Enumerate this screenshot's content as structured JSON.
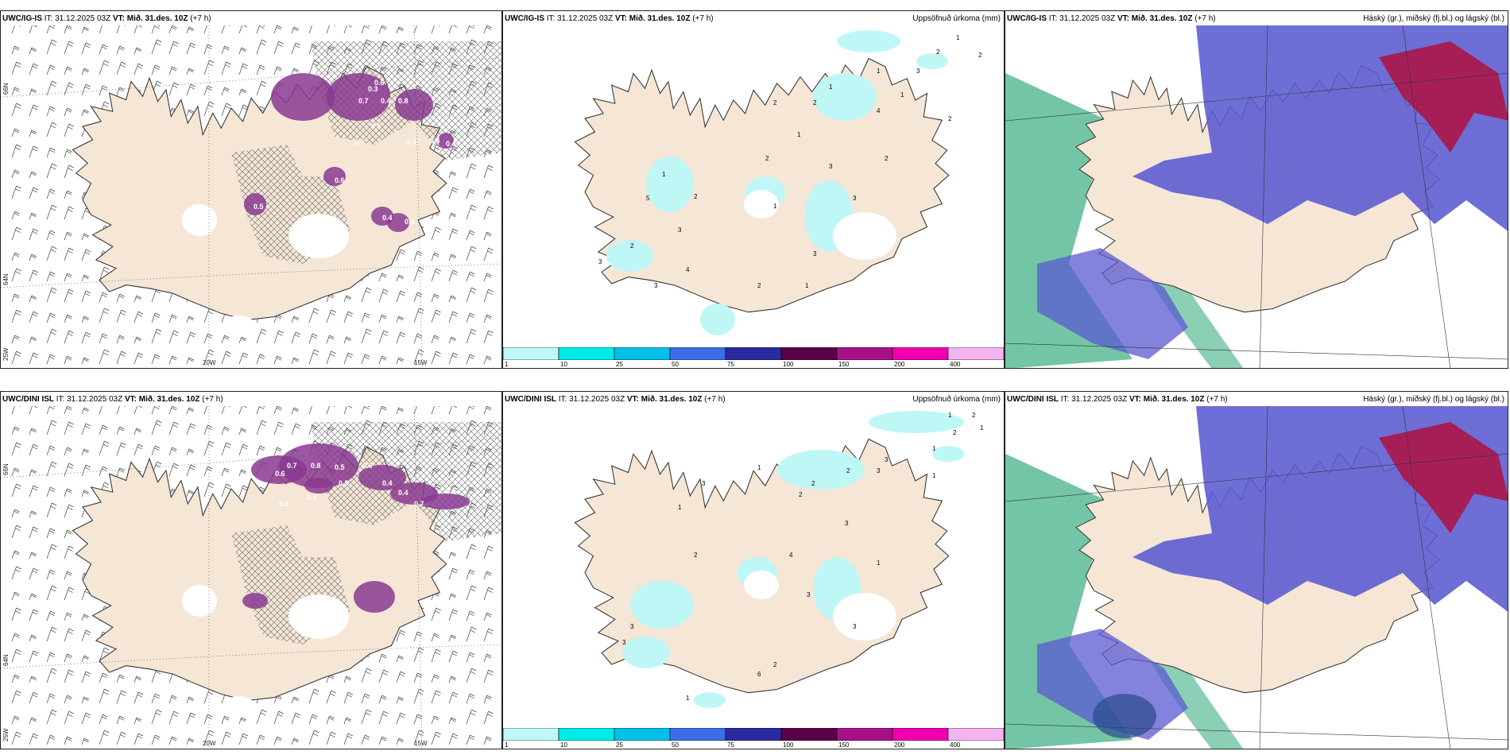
{
  "panels": [
    {
      "model": "UWC/IG-IS",
      "it_label": "IT:",
      "it": "31.12.2025 03Z",
      "vt_label": "VT:",
      "vt": "Mið. 31.des. 10Z",
      "lead": "(+7 h)",
      "right": ""
    },
    {
      "model": "UWC/IG-IS",
      "it_label": "IT:",
      "it": "31.12.2025 03Z",
      "vt_label": "VT:",
      "vt": "Mið. 31.des. 10Z",
      "lead": "(+7 h)",
      "right": "Uppsöfnuð úrkoma (mm)"
    },
    {
      "model": "UWC/IG-IS",
      "it_label": "IT:",
      "it": "31.12.2025 03Z",
      "vt_label": "VT:",
      "vt": "Mið. 31.des. 10Z",
      "lead": "(+7 h)",
      "right": "Háský (gr.), miðský (fj.bl.) og lágský (bl.)"
    },
    {
      "model": "UWC/DINI ISL",
      "it_label": "IT:",
      "it": "31.12.2025 03Z",
      "vt_label": "VT:",
      "vt": "Mið. 31.des. 10Z",
      "lead": "(+7 h)",
      "right": ""
    },
    {
      "model": "UWC/DINI ISL",
      "it_label": "IT:",
      "it": "31.12.2025 03Z",
      "vt_label": "VT:",
      "vt": "Mið. 31.des. 10Z",
      "lead": "(+7 h)",
      "right": "Uppsöfnuð úrkoma (mm)"
    },
    {
      "model": "UWC/DINI ISL",
      "it_label": "IT:",
      "it": "31.12.2025 03Z",
      "vt_label": "VT:",
      "vt": "Mið. 31.des. 10Z",
      "lead": "(+7 h)",
      "right": "Háský (gr.), miðský (fj.bl.) og lágský (bl.)"
    }
  ],
  "graticule": {
    "lon": [
      "20W",
      "15W"
    ],
    "lat": [
      "66N",
      "64N"
    ],
    "lon_edge": "25W"
  },
  "colorbar": {
    "labels": [
      "1",
      "10",
      "25",
      "50",
      "75",
      "100",
      "150",
      "200",
      "400"
    ],
    "colors": [
      "#bff7f7",
      "#00eaea",
      "#00c0ea",
      "#3a6ee8",
      "#2a2aa0",
      "#5a004a",
      "#a8108a",
      "#f000b0",
      "#f4b4f0"
    ]
  },
  "icing_values_top": [
    "0.3",
    "0.7",
    "0.4",
    "0.6",
    "0.8",
    "0.5",
    "0.6",
    "0.3",
    "0.6",
    "0.4",
    "0.6",
    "0.5",
    "0.4",
    "0.4"
  ],
  "icing_values_bottom": [
    "0.6",
    "0.7",
    "0.8",
    "0.5",
    "0.6",
    "0.5",
    "0.4",
    "0.5",
    "0.4",
    "0.4",
    "0.5",
    "0.7"
  ],
  "precip_values_top": [
    "1",
    "2",
    "2",
    "1",
    "2",
    "4",
    "2",
    "3",
    "2",
    "1",
    "2",
    "3",
    "1",
    "2",
    "3",
    "1",
    "2",
    "5",
    "2",
    "3",
    "3",
    "4",
    "2",
    "1",
    "3",
    "3",
    "1",
    "1"
  ],
  "precip_values_bottom": [
    "1",
    "2",
    "1",
    "2",
    "1",
    "3",
    "3",
    "2",
    "2",
    "2",
    "1",
    "3",
    "1",
    "2",
    "3",
    "3",
    "6",
    "2",
    "3",
    "3",
    "1",
    "4",
    "3",
    "1",
    "1"
  ],
  "colors": {
    "land": "#f5e6d6",
    "icing": "#8a3a90",
    "cloud_high": "#5a5ad2",
    "cloud_low": "#5abb95",
    "cloud_mid": "#b01040"
  }
}
